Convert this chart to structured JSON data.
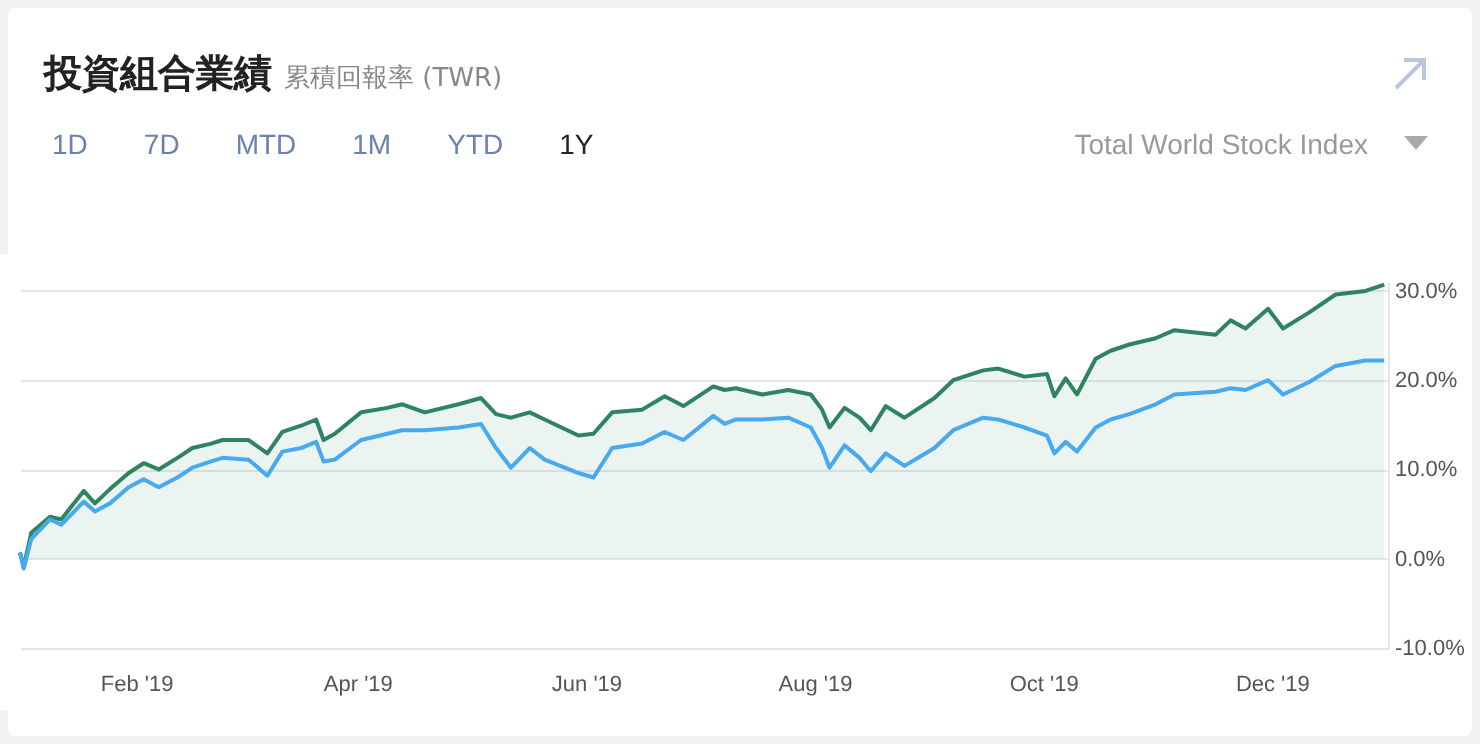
{
  "chart_data": {
    "type": "line",
    "title": "投資組合業績",
    "subtitle": "累積回報率 (TWR)",
    "annotations": [
      "1D",
      "7D",
      "MTD",
      "1M",
      "YTD",
      "1Y",
      "Total World Stock Index"
    ],
    "x": [
      "2019-01-01",
      "2019-01-02",
      "2019-01-04",
      "2019-01-09",
      "2019-01-12",
      "2019-01-18",
      "2019-01-21",
      "2019-01-25",
      "2019-01-30",
      "2019-02-03",
      "2019-02-07",
      "2019-02-12",
      "2019-02-16",
      "2019-02-21",
      "2019-02-24",
      "2019-03-03",
      "2019-03-08",
      "2019-03-12",
      "2019-03-17",
      "2019-03-21",
      "2019-03-23",
      "2019-03-26",
      "2019-04-02",
      "2019-04-09",
      "2019-04-13",
      "2019-04-19",
      "2019-04-28",
      "2019-05-04",
      "2019-05-08",
      "2019-05-12",
      "2019-05-17",
      "2019-05-21",
      "2019-05-30",
      "2019-06-03",
      "2019-06-08",
      "2019-06-16",
      "2019-06-22",
      "2019-06-27",
      "2019-07-05",
      "2019-07-08",
      "2019-07-11",
      "2019-07-18",
      "2019-07-25",
      "2019-07-31",
      "2019-08-03",
      "2019-08-05",
      "2019-08-09",
      "2019-08-13",
      "2019-08-16",
      "2019-08-20",
      "2019-08-25",
      "2019-09-02",
      "2019-09-07",
      "2019-09-15",
      "2019-09-19",
      "2019-09-26",
      "2019-10-02",
      "2019-10-04",
      "2019-10-07",
      "2019-10-10",
      "2019-10-15",
      "2019-10-19",
      "2019-10-24",
      "2019-10-31",
      "2019-11-05",
      "2019-11-16",
      "2019-11-20",
      "2019-11-24",
      "2019-11-30",
      "2019-12-04",
      "2019-12-11",
      "2019-12-18",
      "2019-12-26",
      "2019-12-31"
    ],
    "series": [
      {
        "type": "area",
        "color": "#2e8461",
        "values": [
          0.7,
          -0.9,
          2.9,
          4.7,
          4.4,
          7.6,
          6.2,
          7.8,
          9.6,
          10.7,
          10.0,
          11.3,
          12.4,
          12.9,
          13.3,
          13.3,
          11.8,
          14.2,
          14.9,
          15.6,
          13.3,
          14.0,
          16.4,
          16.9,
          17.3,
          16.4,
          17.3,
          18.0,
          16.2,
          15.8,
          16.4,
          15.6,
          13.8,
          14.0,
          16.4,
          16.7,
          18.2,
          17.1,
          19.3,
          18.9,
          19.1,
          18.4,
          18.9,
          18.4,
          16.7,
          14.7,
          16.9,
          15.8,
          14.4,
          17.1,
          15.8,
          18.0,
          20.0,
          21.1,
          21.3,
          20.4,
          20.7,
          18.2,
          20.2,
          18.4,
          22.4,
          23.3,
          24.0,
          24.7,
          25.6,
          25.1,
          26.7,
          25.8,
          28.0,
          25.8,
          27.6,
          29.6,
          30.0,
          30.7
        ]
      },
      {
        "color": "#47a9ef",
        "values": [
          0.7,
          -1.1,
          2.2,
          4.4,
          3.8,
          6.4,
          5.3,
          6.2,
          8.0,
          8.9,
          8.0,
          9.1,
          10.2,
          10.9,
          11.3,
          11.1,
          9.3,
          12.0,
          12.4,
          13.1,
          10.9,
          11.1,
          13.3,
          14.0,
          14.4,
          14.4,
          14.7,
          15.1,
          12.4,
          10.2,
          12.4,
          11.1,
          9.6,
          9.1,
          12.4,
          12.9,
          14.2,
          13.3,
          16.0,
          15.1,
          15.6,
          15.6,
          15.8,
          14.7,
          12.4,
          10.2,
          12.7,
          11.3,
          9.8,
          11.8,
          10.4,
          12.4,
          14.4,
          15.8,
          15.6,
          14.7,
          13.8,
          11.8,
          13.1,
          12.0,
          14.7,
          15.6,
          16.2,
          17.3,
          18.4,
          18.7,
          19.1,
          18.9,
          20.0,
          18.4,
          19.8,
          21.6,
          22.2,
          22.2
        ]
      }
    ],
    "xlim": [
      "2019-01-01",
      "2020-01-01"
    ],
    "xticks": [
      {
        "value": "2019-02-01",
        "label": "Feb '19"
      },
      {
        "value": "2019-04-01",
        "label": "Apr '19"
      },
      {
        "value": "2019-06-01",
        "label": "Jun '19"
      },
      {
        "value": "2019-08-01",
        "label": "Aug '19"
      },
      {
        "value": "2019-10-01",
        "label": "Oct '19"
      },
      {
        "value": "2019-12-01",
        "label": "Dec '19"
      }
    ],
    "ylim": [
      -10,
      31
    ],
    "yticks": [
      {
        "value": -10,
        "label": "-10.0%"
      },
      {
        "value": 0,
        "label": "0.0%"
      },
      {
        "value": 10,
        "label": "10.0%"
      },
      {
        "value": 20,
        "label": "20.0%"
      },
      {
        "value": 30,
        "label": "30.0%"
      }
    ],
    "grid": "y"
  }
}
